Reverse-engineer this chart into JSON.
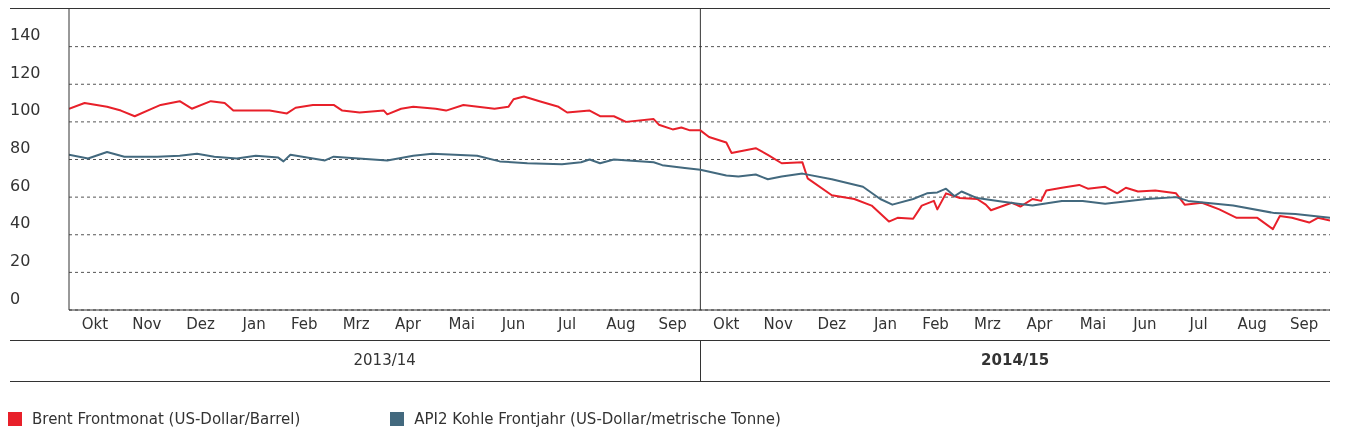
{
  "chart_data": {
    "type": "line",
    "xlim": [
      "2013-10-01",
      "2015-09-30"
    ],
    "xticks": [
      {
        "value": "2013-10-16",
        "label": "Okt"
      },
      {
        "value": "2013-11-15",
        "label": "Nov"
      },
      {
        "value": "2013-12-16",
        "label": "Dez"
      },
      {
        "value": "2014-01-16",
        "label": "Jan"
      },
      {
        "value": "2014-02-14",
        "label": "Feb"
      },
      {
        "value": "2014-03-16",
        "label": "Mrz"
      },
      {
        "value": "2014-04-15",
        "label": "Apr"
      },
      {
        "value": "2014-05-16",
        "label": "Mai"
      },
      {
        "value": "2014-06-15",
        "label": "Jun"
      },
      {
        "value": "2014-07-16",
        "label": "Jul"
      },
      {
        "value": "2014-08-16",
        "label": "Aug"
      },
      {
        "value": "2014-09-15",
        "label": "Sep"
      },
      {
        "value": "2014-10-16",
        "label": "Okt"
      },
      {
        "value": "2014-11-15",
        "label": "Nov"
      },
      {
        "value": "2014-12-16",
        "label": "Dez"
      },
      {
        "value": "2015-01-16",
        "label": "Jan"
      },
      {
        "value": "2015-02-14",
        "label": "Feb"
      },
      {
        "value": "2015-03-16",
        "label": "Mrz"
      },
      {
        "value": "2015-04-15",
        "label": "Apr"
      },
      {
        "value": "2015-05-16",
        "label": "Mai"
      },
      {
        "value": "2015-06-15",
        "label": "Jun"
      },
      {
        "value": "2015-07-16",
        "label": "Jul"
      },
      {
        "value": "2015-08-16",
        "label": "Aug"
      },
      {
        "value": "2015-09-15",
        "label": "Sep"
      }
    ],
    "ylim": [
      0,
      160
    ],
    "yticks": [
      0,
      20,
      40,
      60,
      80,
      100,
      120,
      140
    ],
    "grid": "y",
    "legend": "bottom left",
    "marker": "none",
    "line_style": "solid",
    "ref_lines": [
      {
        "axis": "x",
        "value": "2014-10-01",
        "color": "#333333"
      }
    ],
    "annotations": [
      "2013/14",
      "2014/15"
    ],
    "series": [
      {
        "name": "Brent Frontmonat (US-Dollar/Barrel)",
        "color": "#e8202a",
        "x": [
          "2013-10-01",
          "2013-10-10",
          "2013-10-23",
          "2013-10-31",
          "2013-11-08",
          "2013-11-18",
          "2013-11-23",
          "2013-12-04",
          "2013-12-11",
          "2013-12-22",
          "2013-12-30",
          "2014-01-04",
          "2014-01-25",
          "2014-02-04",
          "2014-02-09",
          "2014-02-19",
          "2014-03-03",
          "2014-03-08",
          "2014-03-18",
          "2014-04-01",
          "2014-04-03",
          "2014-04-11",
          "2014-04-18",
          "2014-05-01",
          "2014-05-07",
          "2014-05-17",
          "2014-06-04",
          "2014-06-12",
          "2014-06-15",
          "2014-06-21",
          "2014-06-30",
          "2014-07-11",
          "2014-07-16",
          "2014-07-29",
          "2014-08-04",
          "2014-08-12",
          "2014-08-19",
          "2014-09-04",
          "2014-09-07",
          "2014-09-15",
          "2014-09-20",
          "2014-09-25",
          "2014-10-01",
          "2014-10-06",
          "2014-10-16",
          "2014-10-19",
          "2014-11-02",
          "2014-11-09",
          "2014-11-17",
          "2014-11-29",
          "2014-12-02",
          "2014-12-16",
          "2014-12-29",
          "2015-01-08",
          "2015-01-18",
          "2015-01-23",
          "2015-02-01",
          "2015-02-06",
          "2015-02-13",
          "2015-02-15",
          "2015-02-20",
          "2015-02-28",
          "2015-03-10",
          "2015-03-15",
          "2015-03-18",
          "2015-03-30",
          "2015-04-04",
          "2015-04-11",
          "2015-04-16",
          "2015-04-19",
          "2015-04-28",
          "2015-05-08",
          "2015-05-13",
          "2015-05-23",
          "2015-05-30",
          "2015-06-04",
          "2015-06-11",
          "2015-06-21",
          "2015-07-03",
          "2015-07-08",
          "2015-07-18",
          "2015-07-28",
          "2015-08-07",
          "2015-08-19",
          "2015-08-28",
          "2015-09-01",
          "2015-09-08",
          "2015-09-18",
          "2015-09-23",
          "2015-09-30"
        ],
        "values": [
          107,
          110,
          108,
          106,
          103,
          107,
          109,
          111,
          107,
          111,
          110,
          106,
          106,
          104.5,
          107.5,
          109,
          109,
          106,
          105,
          106,
          104,
          107,
          108,
          107,
          106,
          109,
          107,
          108,
          112,
          113.5,
          111,
          108,
          105,
          106,
          103,
          103,
          100,
          101.5,
          98.5,
          96,
          97,
          95.5,
          95.5,
          92,
          89,
          83.5,
          86,
          82.5,
          78,
          78.5,
          70,
          61,
          59,
          55.5,
          47,
          49,
          48.5,
          55.5,
          58,
          53.5,
          62,
          59.5,
          59,
          56,
          53,
          57,
          55,
          59,
          58,
          63.5,
          65,
          66.5,
          64.5,
          65.5,
          62,
          65,
          63,
          63.5,
          62,
          56,
          57,
          53.5,
          49,
          49,
          43,
          50,
          49,
          46.5,
          49,
          47.5
        ]
      },
      {
        "name": "API2 Kohle Frontjahr (US-Dollar/metrische Tonne)",
        "color": "#43697e",
        "x": [
          "2013-10-01",
          "2013-10-12",
          "2013-10-23",
          "2013-11-02",
          "2013-11-21",
          "2013-12-04",
          "2013-12-14",
          "2013-12-24",
          "2014-01-06",
          "2014-01-17",
          "2014-01-30",
          "2014-02-02",
          "2014-02-06",
          "2014-02-26",
          "2014-03-03",
          "2014-04-03",
          "2014-04-18",
          "2014-04-29",
          "2014-05-25",
          "2014-06-07",
          "2014-06-23",
          "2014-07-13",
          "2014-07-24",
          "2014-07-29",
          "2014-08-04",
          "2014-08-12",
          "2014-09-04",
          "2014-09-09",
          "2014-09-22",
          "2014-10-01",
          "2014-10-16",
          "2014-10-23",
          "2014-11-02",
          "2014-11-09",
          "2014-11-17",
          "2014-11-29",
          "2014-12-16",
          "2015-01-03",
          "2015-01-13",
          "2015-01-20",
          "2015-02-01",
          "2015-02-09",
          "2015-02-15",
          "2015-02-20",
          "2015-02-25",
          "2015-03-01",
          "2015-03-10",
          "2015-03-25",
          "2015-04-11",
          "2015-04-28",
          "2015-05-10",
          "2015-05-23",
          "2015-06-16",
          "2015-07-03",
          "2015-07-10",
          "2015-08-05",
          "2015-08-29",
          "2015-09-10",
          "2015-09-30"
        ],
        "values": [
          82.5,
          80.5,
          84,
          81.5,
          81.5,
          82,
          83,
          81.5,
          80.5,
          82,
          81,
          79,
          82.5,
          79.5,
          81.5,
          79.5,
          82,
          83,
          82,
          79,
          78,
          77.5,
          78.5,
          80,
          78,
          80,
          78.5,
          77,
          75.5,
          74.5,
          71.5,
          71,
          72,
          69.5,
          71,
          72.5,
          69.5,
          65.5,
          59,
          56,
          59,
          62,
          62.5,
          64.5,
          60.5,
          63,
          59.5,
          57.5,
          55.5,
          58,
          58,
          56.5,
          59,
          60,
          58,
          55.5,
          51.5,
          51,
          49
        ]
      }
    ]
  }
}
